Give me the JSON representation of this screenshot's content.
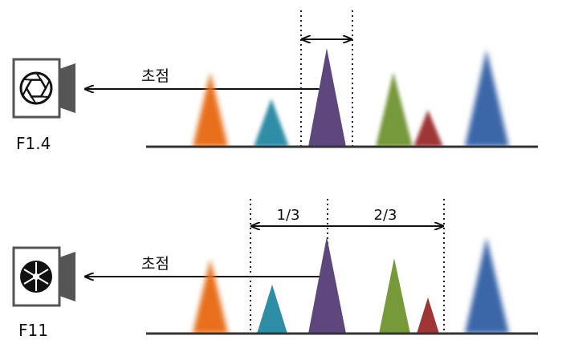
{
  "panels": [
    {
      "id": "f14",
      "aperture_label": "F1.4",
      "focus_label": "초점",
      "dof_fractions": [],
      "aperture_state": "wide-open",
      "sharp_objects": [
        "purple"
      ]
    },
    {
      "id": "f11",
      "aperture_label": "F11",
      "focus_label": "초점",
      "dof_fractions": [
        "1/3",
        "2/3"
      ],
      "aperture_state": "stopped-down",
      "sharp_objects": [
        "teal",
        "purple",
        "green",
        "red"
      ]
    }
  ],
  "colors": {
    "orange": "#E8701A",
    "teal": "#2E8EA6",
    "purple": "#5E477C",
    "green": "#76993A",
    "red": "#A03535",
    "blue": "#3A66A8",
    "line": "#333333",
    "camera_body": "#555555"
  }
}
